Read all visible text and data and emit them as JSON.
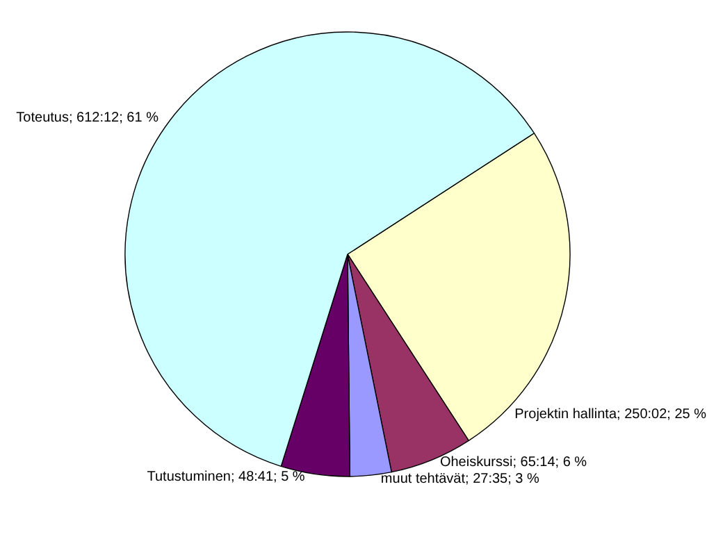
{
  "chart_data": {
    "type": "pie",
    "categories": [
      "Projektin hallinta",
      "Oheiskurssi",
      "muut tehtävät",
      "Tutustuminen",
      "Toteutus"
    ],
    "values": [
      25,
      6,
      3,
      5,
      61
    ],
    "value_labels": [
      "250:02; 25 %",
      "65:14; 6 %",
      "27:35; 3 %",
      "48:41; 5 %",
      "612:12; 61 %"
    ],
    "colors": [
      "#ffffcc",
      "#993366",
      "#9999ff",
      "#660066",
      "#ccffff"
    ],
    "legend": false
  }
}
